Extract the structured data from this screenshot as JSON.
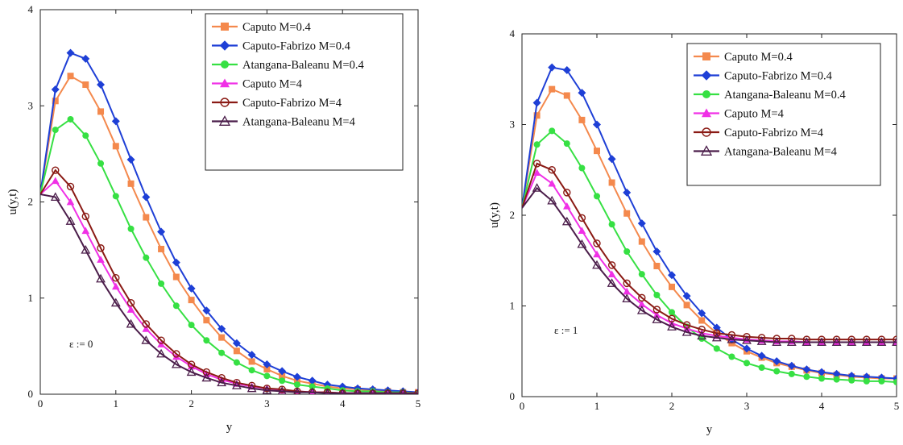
{
  "chart_data": [
    {
      "type": "line",
      "xlabel": "y",
      "ylabel": "u(y,t)",
      "xlim": [
        0,
        5
      ],
      "ylim": [
        0,
        4
      ],
      "xticks": [
        "0",
        "1",
        "2",
        "3",
        "4",
        "5"
      ],
      "yticks": [
        "0",
        "1",
        "2",
        "3",
        "4"
      ],
      "annotation": "ε := 0",
      "legend_position": "top-right",
      "grid": false,
      "series": [
        {
          "name": "Caputo M=0.4",
          "color": "#f4894d",
          "marker": "square",
          "x": [
            0,
            0.2,
            0.4,
            0.6,
            0.8,
            1.0,
            1.2,
            1.4,
            1.6,
            1.8,
            2.0,
            2.2,
            2.4,
            2.6,
            2.8,
            3.0,
            3.2,
            3.4,
            3.6,
            3.8,
            4.0,
            4.2,
            4.4,
            4.6,
            4.8,
            5.0
          ],
          "y": [
            2.08,
            3.05,
            3.31,
            3.22,
            2.94,
            2.58,
            2.19,
            1.84,
            1.51,
            1.22,
            0.98,
            0.77,
            0.59,
            0.45,
            0.34,
            0.26,
            0.19,
            0.14,
            0.11,
            0.08,
            0.06,
            0.05,
            0.04,
            0.03,
            0.02,
            0.02
          ]
        },
        {
          "name": "Caputo-Fabrizo M=0.4",
          "color": "#1e3fd6",
          "marker": "diamond",
          "x": [
            0,
            0.2,
            0.4,
            0.6,
            0.8,
            1.0,
            1.2,
            1.4,
            1.6,
            1.8,
            2.0,
            2.2,
            2.4,
            2.6,
            2.8,
            3.0,
            3.2,
            3.4,
            3.6,
            3.8,
            4.0,
            4.2,
            4.4,
            4.6,
            4.8,
            5.0
          ],
          "y": [
            2.08,
            3.17,
            3.55,
            3.49,
            3.22,
            2.84,
            2.44,
            2.05,
            1.69,
            1.37,
            1.1,
            0.87,
            0.68,
            0.53,
            0.41,
            0.31,
            0.24,
            0.18,
            0.14,
            0.1,
            0.08,
            0.06,
            0.05,
            0.04,
            0.03,
            0.02
          ]
        },
        {
          "name": "Atangana-Baleanu M=0.4",
          "color": "#36e043",
          "marker": "circle",
          "x": [
            0,
            0.2,
            0.4,
            0.6,
            0.8,
            1.0,
            1.2,
            1.4,
            1.6,
            1.8,
            2.0,
            2.2,
            2.4,
            2.6,
            2.8,
            3.0,
            3.2,
            3.4,
            3.6,
            3.8,
            4.0,
            4.2,
            4.4,
            4.6,
            4.8,
            5.0
          ],
          "y": [
            2.08,
            2.75,
            2.86,
            2.69,
            2.4,
            2.06,
            1.72,
            1.42,
            1.15,
            0.92,
            0.72,
            0.56,
            0.43,
            0.33,
            0.25,
            0.19,
            0.14,
            0.1,
            0.08,
            0.06,
            0.04,
            0.03,
            0.03,
            0.02,
            0.02,
            0.01
          ]
        },
        {
          "name": "Caputo M=4",
          "color": "#f030e6",
          "marker": "triangle",
          "x": [
            0,
            0.2,
            0.4,
            0.6,
            0.8,
            1.0,
            1.2,
            1.4,
            1.6,
            1.8,
            2.0,
            2.2,
            2.4,
            2.6,
            2.8,
            3.0,
            3.2,
            3.4,
            3.6,
            3.8,
            4.0,
            4.2,
            4.4,
            4.6,
            4.8,
            5.0
          ],
          "y": [
            2.08,
            2.22,
            2.0,
            1.7,
            1.4,
            1.12,
            0.88,
            0.68,
            0.52,
            0.39,
            0.29,
            0.21,
            0.15,
            0.11,
            0.08,
            0.06,
            0.04,
            0.03,
            0.02,
            0.02,
            0.01,
            0.01,
            0.01,
            0.01,
            0.01,
            0.01
          ]
        },
        {
          "name": "Caputo-Fabrizo M=4",
          "color": "#8a1a14",
          "marker": "open-circle",
          "x": [
            0,
            0.2,
            0.4,
            0.6,
            0.8,
            1.0,
            1.2,
            1.4,
            1.6,
            1.8,
            2.0,
            2.2,
            2.4,
            2.6,
            2.8,
            3.0,
            3.2,
            3.4,
            3.6,
            3.8,
            4.0,
            4.2,
            4.4,
            4.6,
            4.8,
            5.0
          ],
          "y": [
            2.08,
            2.33,
            2.16,
            1.85,
            1.52,
            1.21,
            0.95,
            0.73,
            0.56,
            0.42,
            0.31,
            0.23,
            0.17,
            0.12,
            0.09,
            0.06,
            0.05,
            0.03,
            0.02,
            0.02,
            0.01,
            0.01,
            0.01,
            0.01,
            0.01,
            0.01
          ]
        },
        {
          "name": "Atangana-Baleanu M=4",
          "color": "#4b1d4a",
          "marker": "open-triangle",
          "x": [
            0,
            0.2,
            0.4,
            0.6,
            0.8,
            1.0,
            1.2,
            1.4,
            1.6,
            1.8,
            2.0,
            2.2,
            2.4,
            2.6,
            2.8,
            3.0,
            3.2,
            3.4,
            3.6,
            3.8,
            4.0,
            4.2,
            4.4,
            4.6,
            4.8,
            5.0
          ],
          "y": [
            2.08,
            2.05,
            1.8,
            1.5,
            1.2,
            0.95,
            0.73,
            0.56,
            0.42,
            0.31,
            0.23,
            0.17,
            0.12,
            0.09,
            0.06,
            0.04,
            0.03,
            0.02,
            0.02,
            0.01,
            0.01,
            0.01,
            0.01,
            0.01,
            0.01,
            0.0
          ]
        }
      ]
    },
    {
      "type": "line",
      "xlabel": "y",
      "ylabel": "u(y,t)",
      "xlim": [
        0,
        5
      ],
      "ylim": [
        0,
        4
      ],
      "xticks": [
        "0",
        "1",
        "2",
        "3",
        "4",
        "5"
      ],
      "yticks": [
        "0",
        "1",
        "2",
        "3",
        "4"
      ],
      "annotation": "ε := 1",
      "legend_position": "top-right",
      "grid": false,
      "series": [
        {
          "name": "Caputo M=0.4",
          "color": "#f4894d",
          "marker": "square",
          "x": [
            0,
            0.2,
            0.4,
            0.6,
            0.8,
            1.0,
            1.2,
            1.4,
            1.6,
            1.8,
            2.0,
            2.2,
            2.4,
            2.6,
            2.8,
            3.0,
            3.2,
            3.4,
            3.6,
            3.8,
            4.0,
            4.2,
            4.4,
            4.6,
            4.8,
            5.0
          ],
          "y": [
            2.08,
            3.1,
            3.39,
            3.32,
            3.05,
            2.71,
            2.36,
            2.02,
            1.71,
            1.44,
            1.21,
            1.01,
            0.84,
            0.7,
            0.59,
            0.5,
            0.43,
            0.37,
            0.33,
            0.29,
            0.26,
            0.24,
            0.22,
            0.21,
            0.2,
            0.2
          ]
        },
        {
          "name": "Caputo-Fabrizo M=0.4",
          "color": "#1e3fd6",
          "marker": "diamond",
          "x": [
            0,
            0.2,
            0.4,
            0.6,
            0.8,
            1.0,
            1.2,
            1.4,
            1.6,
            1.8,
            2.0,
            2.2,
            2.4,
            2.6,
            2.8,
            3.0,
            3.2,
            3.4,
            3.6,
            3.8,
            4.0,
            4.2,
            4.4,
            4.6,
            4.8,
            5.0
          ],
          "y": [
            2.08,
            3.24,
            3.63,
            3.6,
            3.35,
            3.0,
            2.62,
            2.25,
            1.91,
            1.6,
            1.34,
            1.11,
            0.92,
            0.76,
            0.63,
            0.53,
            0.45,
            0.39,
            0.34,
            0.3,
            0.27,
            0.25,
            0.23,
            0.22,
            0.21,
            0.2
          ]
        },
        {
          "name": "Atangana-Baleanu M=0.4",
          "color": "#36e043",
          "marker": "circle",
          "x": [
            0,
            0.2,
            0.4,
            0.6,
            0.8,
            1.0,
            1.2,
            1.4,
            1.6,
            1.8,
            2.0,
            2.2,
            2.4,
            2.6,
            2.8,
            3.0,
            3.2,
            3.4,
            3.6,
            3.8,
            4.0,
            4.2,
            4.4,
            4.6,
            4.8,
            5.0
          ],
          "y": [
            2.08,
            2.78,
            2.93,
            2.79,
            2.52,
            2.21,
            1.9,
            1.6,
            1.35,
            1.12,
            0.93,
            0.77,
            0.64,
            0.53,
            0.44,
            0.37,
            0.32,
            0.28,
            0.25,
            0.22,
            0.2,
            0.19,
            0.18,
            0.17,
            0.17,
            0.16
          ]
        },
        {
          "name": "Caputo M=4",
          "color": "#f030e6",
          "marker": "triangle",
          "x": [
            0,
            0.2,
            0.4,
            0.6,
            0.8,
            1.0,
            1.2,
            1.4,
            1.6,
            1.8,
            2.0,
            2.2,
            2.4,
            2.6,
            2.8,
            3.0,
            3.2,
            3.4,
            3.6,
            3.8,
            4.0,
            4.2,
            4.4,
            4.6,
            4.8,
            5.0
          ],
          "y": [
            2.08,
            2.47,
            2.35,
            2.1,
            1.83,
            1.57,
            1.35,
            1.16,
            1.02,
            0.9,
            0.81,
            0.75,
            0.7,
            0.67,
            0.65,
            0.63,
            0.62,
            0.61,
            0.61,
            0.6,
            0.6,
            0.6,
            0.6,
            0.6,
            0.6,
            0.6
          ]
        },
        {
          "name": "Caputo-Fabrizo M=4",
          "color": "#8a1a14",
          "marker": "open-circle",
          "x": [
            0,
            0.2,
            0.4,
            0.6,
            0.8,
            1.0,
            1.2,
            1.4,
            1.6,
            1.8,
            2.0,
            2.2,
            2.4,
            2.6,
            2.8,
            3.0,
            3.2,
            3.4,
            3.6,
            3.8,
            4.0,
            4.2,
            4.4,
            4.6,
            4.8,
            5.0
          ],
          "y": [
            2.08,
            2.57,
            2.5,
            2.25,
            1.97,
            1.69,
            1.45,
            1.25,
            1.09,
            0.96,
            0.86,
            0.79,
            0.74,
            0.7,
            0.68,
            0.66,
            0.65,
            0.64,
            0.64,
            0.63,
            0.63,
            0.63,
            0.63,
            0.63,
            0.63,
            0.63
          ]
        },
        {
          "name": "Atangana-Baleanu M=4",
          "color": "#4b1d4a",
          "marker": "open-triangle",
          "x": [
            0,
            0.2,
            0.4,
            0.6,
            0.8,
            1.0,
            1.2,
            1.4,
            1.6,
            1.8,
            2.0,
            2.2,
            2.4,
            2.6,
            2.8,
            3.0,
            3.2,
            3.4,
            3.6,
            3.8,
            4.0,
            4.2,
            4.4,
            4.6,
            4.8,
            5.0
          ],
          "y": [
            2.08,
            2.3,
            2.16,
            1.93,
            1.68,
            1.45,
            1.25,
            1.08,
            0.95,
            0.85,
            0.77,
            0.71,
            0.67,
            0.65,
            0.63,
            0.62,
            0.61,
            0.6,
            0.6,
            0.6,
            0.6,
            0.6,
            0.6,
            0.6,
            0.6,
            0.6
          ]
        }
      ]
    }
  ]
}
